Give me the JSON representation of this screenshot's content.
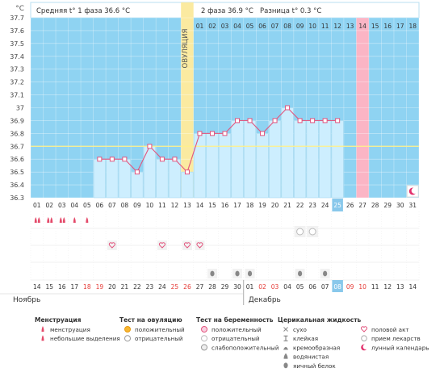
{
  "header": {
    "unit": "°C",
    "phase1": "Средняя t° 1 фаза 36.6 °C",
    "phase2": "2 фаза 36.9 °C",
    "diff": "Разница t° 0.3 °C"
  },
  "ovulation_label": "ОВУЛЯЦИЯ",
  "colors": {
    "chart_bg": "#8fd3f2",
    "bar_fill": "#cdeefe",
    "bar_edge": "#a4d8ef",
    "line": "#e2557e",
    "ovulation": "#fbeaa0",
    "highlight": "#fbb5c5",
    "today": "#89c8eb",
    "coverline": "#fff08a",
    "menstruation": "#e44a6a"
  },
  "months": {
    "first": "Ноябрь",
    "second": "Декабрь"
  },
  "chart_data": {
    "type": "line",
    "ylim": [
      36.3,
      37.7
    ],
    "yticks": [
      "37.7",
      "37.6",
      "37.5",
      "37.4",
      "37.3",
      "37.2",
      "37.1",
      "37",
      "36.9",
      "36.8",
      "36.7",
      "36.6",
      "36.5",
      "36.4",
      "36.3"
    ],
    "coverline": 36.7,
    "cycle_days_top": [
      "",
      "",
      "",
      "",
      "",
      "",
      "",
      "",
      "",
      "",
      "",
      "",
      "",
      "01",
      "02",
      "03",
      "04",
      "05",
      "06",
      "07",
      "08",
      "09",
      "10",
      "11",
      "12",
      "13",
      "14",
      "15",
      "16",
      "17",
      "18"
    ],
    "cycle_days_bottom": [
      "01",
      "02",
      "03",
      "04",
      "05",
      "06",
      "07",
      "08",
      "09",
      "10",
      "11",
      "12",
      "13",
      "14",
      "15",
      "16",
      "17",
      "18",
      "19",
      "20",
      "21",
      "22",
      "23",
      "24",
      "25",
      "26",
      "27",
      "28",
      "29",
      "30",
      "31"
    ],
    "dates": [
      "14",
      "15",
      "16",
      "17",
      "18",
      "19",
      "20",
      "21",
      "22",
      "23",
      "24",
      "25",
      "26",
      "27",
      "28",
      "29",
      "30",
      "01",
      "02",
      "03",
      "04",
      "05",
      "06",
      "07",
      "08",
      "09",
      "10",
      "11",
      "12",
      "13",
      "14"
    ],
    "weekend_dates": [
      5,
      6,
      12,
      13,
      19,
      20,
      26,
      27
    ],
    "temperatures": [
      null,
      null,
      null,
      null,
      null,
      36.6,
      36.6,
      36.6,
      36.5,
      36.7,
      36.6,
      36.6,
      36.5,
      36.8,
      36.8,
      36.8,
      36.9,
      36.9,
      36.8,
      36.9,
      37.0,
      36.9,
      36.9,
      36.9,
      36.9,
      null,
      null,
      null,
      null,
      null,
      null
    ],
    "ovulation_day": 13,
    "highlight_day": 27,
    "today_day": 25,
    "menstruation": [
      "heavy",
      "heavy",
      "heavy",
      "light",
      "light"
    ],
    "marks_row1": {
      "22": "test-negative",
      "23": "test-negative"
    },
    "marks_row2": {
      "7": "intercourse",
      "11": "intercourse",
      "13": "intercourse",
      "14": "intercourse"
    },
    "marks_row3": {
      "15": "egg-white",
      "17": "egg-white",
      "18": "egg-white",
      "22": "egg-white",
      "24": "egg-white"
    },
    "moon_day": 31
  },
  "legend": {
    "col1": {
      "title": "Менструация",
      "items": [
        {
          "icon": "menstruation-heavy-icon",
          "label": "менструация"
        },
        {
          "icon": "menstruation-light-icon",
          "label": "небольшие выделения"
        }
      ]
    },
    "col2": {
      "title": "Тест на овуляцию",
      "items": [
        {
          "icon": "ovulation-test-positive-icon",
          "label": "положительный"
        },
        {
          "icon": "ovulation-test-negative-icon",
          "label": "отрицательный"
        }
      ]
    },
    "col3": {
      "title": "Тест на беременность",
      "items": [
        {
          "icon": "pregnancy-test-positive-icon",
          "label": "положительный"
        },
        {
          "icon": "pregnancy-test-negative-icon",
          "label": "отрицательный"
        },
        {
          "icon": "pregnancy-test-weak-icon",
          "label": "слабоположительный"
        }
      ]
    },
    "col4": {
      "title": "Церикальная жидкость",
      "items": [
        {
          "icon": "dry-icon",
          "label": "сухо"
        },
        {
          "icon": "sticky-icon",
          "label": "клейкая"
        },
        {
          "icon": "creamy-icon",
          "label": "кремообразная"
        },
        {
          "icon": "watery-icon",
          "label": "водянистая"
        },
        {
          "icon": "egg-white-icon",
          "label": "яичный белок"
        }
      ]
    },
    "col5": {
      "items": [
        {
          "icon": "intercourse-icon",
          "label": "половой акт"
        },
        {
          "icon": "medication-icon",
          "label": "прием лекарств"
        },
        {
          "icon": "moon-calendar-icon",
          "label": "лунный календарь"
        }
      ]
    }
  }
}
